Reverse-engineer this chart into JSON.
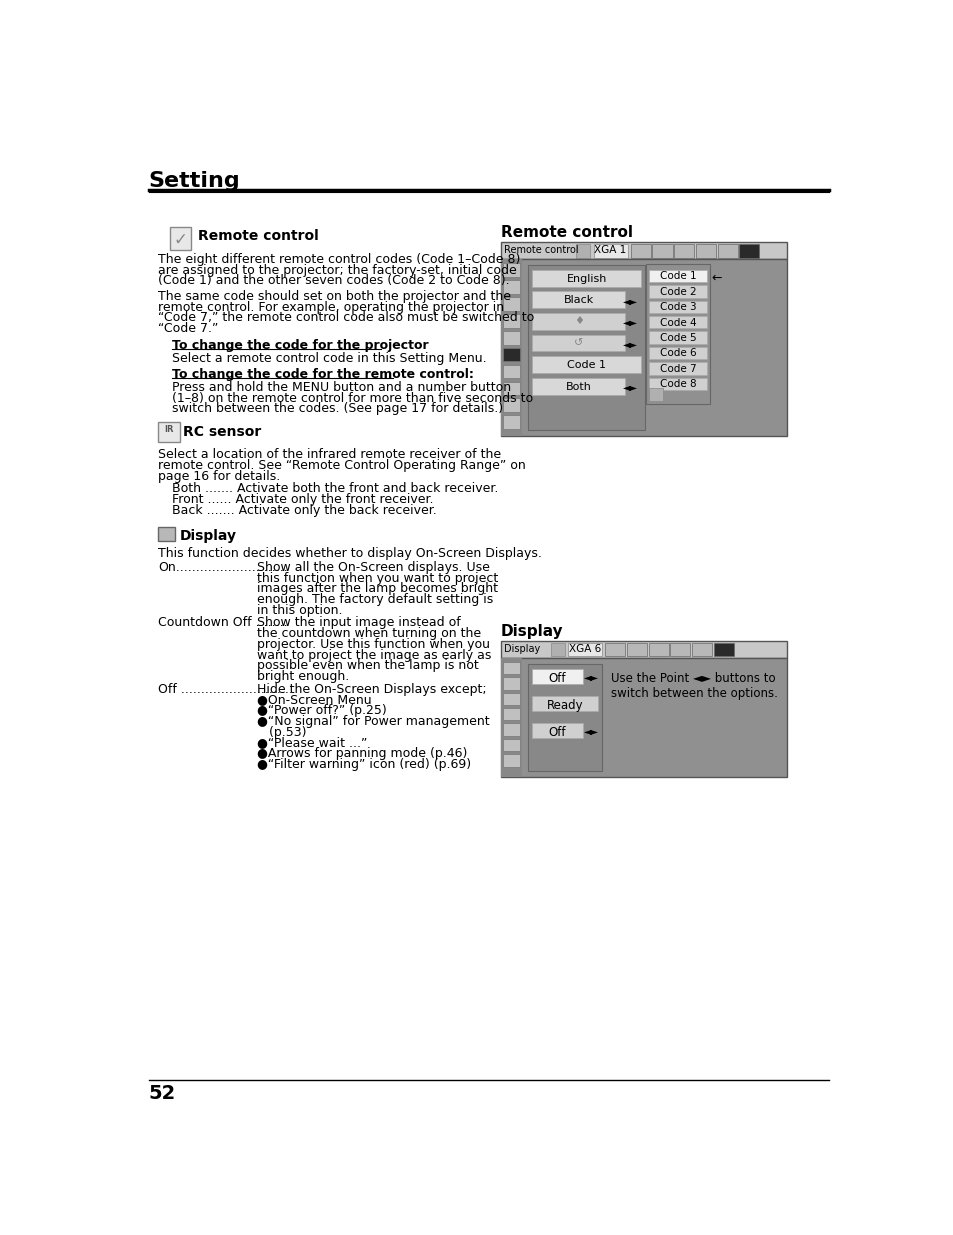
{
  "title": "Setting",
  "page_number": "52",
  "rc_section": {
    "heading": "Remote control",
    "para1": "The eight different remote control codes (Code 1–Code 8)\nare assigned to the projector; the factory-set, initial code\n(Code 1) and the other seven codes (Code 2 to Code 8).",
    "para2": "The same code should set on both the projector and the\nremote control. For example, operating the projector in\n“Code 7,” the remote control code also must be switched to\n“Code 7.”",
    "sub1_head": "To change the code for the projector",
    "sub1_text": "Select a remote control code in this Setting Menu.",
    "sub2_head": "To change the code for the remote control:",
    "sub2_text": "Press and hold the MENU button and a number button\n(1–8) on the remote control for more than five seconds to\nswitch between the codes. (See page 17 for details.)"
  },
  "rc_sensor": {
    "heading": "RC sensor",
    "para": "Select a location of the infrared remote receiver of the\nremote control. See “Remote Control Operating Range” on\npage 16 for details.",
    "items": [
      "Both ....... Activate both the front and back receiver.",
      "Front ...... Activate only the front receiver.",
      "Back ....... Activate only the back receiver."
    ]
  },
  "display_section": {
    "heading": "Display",
    "intro": "This function decides whether to display On-Screen Displays.",
    "items": [
      {
        "label": "On............................",
        "text": "Show all the On-Screen displays. Use\nthis function when you want to project\nimages after the lamp becomes bright\nenough. The factory default setting is\nin this option."
      },
      {
        "label": "Countdown Off ........",
        "text": "Show the input image instead of\nthe countdown when turning on the\nprojector. Use this function when you\nwant to project the image as early as\npossible even when the lamp is not\nbright enough."
      },
      {
        "label": "Off ............................",
        "text": "Hide the On-Screen Displays except;\n●On-Screen Menu\n●“Power off?” (p.25)\n●“No signal” for Power management\n   (p.53)\n●“Please wait ...”\n●Arrows for panning mode (p.46)\n●“Filter warning” icon (red) (p.69)"
      }
    ]
  },
  "rc_panel": {
    "title": "Remote control",
    "xga": "XGA 1",
    "menu_items": [
      "English",
      "Black",
      "lamp_icon",
      "mouse_icon",
      "Code 1",
      "Both"
    ],
    "menu_arrows": [
      false,
      true,
      true,
      true,
      false,
      true
    ],
    "codes": [
      "Code 1",
      "Code 2",
      "Code 3",
      "Code 4",
      "Code 5",
      "Code 6",
      "Code 7",
      "Code 8"
    ],
    "selected_code": 0
  },
  "disp_panel": {
    "title": "Display",
    "xga": "XGA 6",
    "menu_items": [
      "Off",
      "Ready",
      "Off"
    ],
    "menu_arrows": [
      true,
      false,
      true
    ],
    "note": "Use the Point ◄► buttons to\nswitch between the options."
  }
}
